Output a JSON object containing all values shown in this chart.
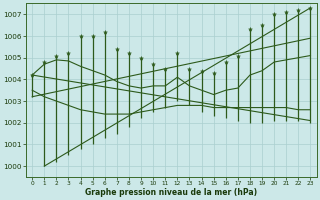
{
  "hours": [
    0,
    1,
    2,
    3,
    4,
    5,
    6,
    7,
    8,
    9,
    10,
    11,
    12,
    13,
    14,
    15,
    16,
    17,
    18,
    19,
    20,
    21,
    22,
    23
  ],
  "max_vals": [
    1004.2,
    1004.8,
    1005.1,
    1005.2,
    1006.0,
    1006.0,
    1006.2,
    1005.4,
    1005.2,
    1005.0,
    1004.7,
    1004.5,
    1005.2,
    1004.5,
    1004.4,
    1004.3,
    1004.8,
    1005.1,
    1006.3,
    1006.5,
    1007.0,
    1007.1,
    1007.2,
    1007.3
  ],
  "min_vals": [
    1003.2,
    1000.0,
    1000.2,
    1000.5,
    1000.8,
    1001.0,
    1001.3,
    1001.5,
    1001.8,
    1002.2,
    1002.5,
    1002.7,
    1003.0,
    1002.8,
    1002.5,
    1002.3,
    1002.2,
    1002.1,
    1002.0,
    1002.0,
    1002.1,
    1002.1,
    1002.1,
    1002.0
  ],
  "mean_top": [
    1004.2,
    1004.7,
    1004.9,
    1004.85,
    1004.6,
    1004.4,
    1004.2,
    1003.9,
    1003.7,
    1003.6,
    1003.7,
    1003.7,
    1004.1,
    1003.7,
    1003.5,
    1003.3,
    1003.5,
    1003.6,
    1004.2,
    1004.4,
    1004.8,
    1004.9,
    1005.0,
    1005.1
  ],
  "mean_bot": [
    1003.5,
    1003.2,
    1003.0,
    1002.8,
    1002.6,
    1002.5,
    1002.4,
    1002.4,
    1002.4,
    1002.5,
    1002.6,
    1002.7,
    1002.8,
    1002.8,
    1002.8,
    1002.7,
    1002.7,
    1002.7,
    1002.7,
    1002.7,
    1002.7,
    1002.7,
    1002.6,
    1002.6
  ],
  "trend_line1": [
    [
      0,
      1004.2
    ],
    [
      23,
      1002.1
    ]
  ],
  "trend_line2": [
    [
      0,
      1003.2
    ],
    [
      23,
      1005.9
    ]
  ],
  "trend_line3": [
    [
      1,
      1000.0
    ],
    [
      23,
      1007.3
    ]
  ],
  "ylim": [
    999.5,
    1007.5
  ],
  "yticks": [
    1000,
    1001,
    1002,
    1003,
    1004,
    1005,
    1006,
    1007
  ],
  "bg_color": "#cce8e8",
  "line_color": "#2d5a1b",
  "grid_color": "#aacfcf",
  "xlabel": "Graphe pression niveau de la mer (hPa)"
}
